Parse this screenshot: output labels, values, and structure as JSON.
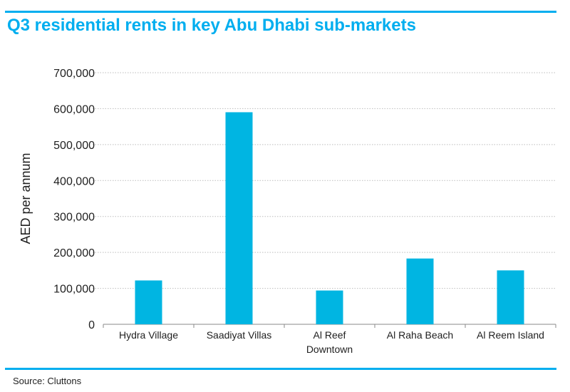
{
  "title": "Q3 residential rents in key Abu Dhabi sub-markets",
  "source": "Source: Cluttons",
  "colors": {
    "accent": "#00AEEF",
    "bar": "#00B5E2",
    "grid": "#BDBDBD"
  },
  "chart_data": {
    "type": "bar",
    "title": "Q3 residential rents in key Abu Dhabi sub-markets",
    "ylabel": "AED per annum",
    "xlabel": "",
    "categories": [
      [
        "Hydra Village"
      ],
      [
        "Saadiyat Villas"
      ],
      [
        "Al Reef",
        "Downtown"
      ],
      [
        "Al Raha Beach"
      ],
      [
        "Al Reem Island"
      ]
    ],
    "values": [
      122000,
      590000,
      94000,
      183000,
      150000
    ],
    "ylim": [
      0,
      700000
    ],
    "yticks": [
      0,
      100000,
      200000,
      300000,
      400000,
      500000,
      600000,
      700000
    ],
    "ytick_labels": [
      "0",
      "100,000",
      "200,000",
      "300,000",
      "400,000",
      "500,000",
      "600,000",
      "700,000"
    ],
    "grid": true,
    "legend": "none"
  }
}
